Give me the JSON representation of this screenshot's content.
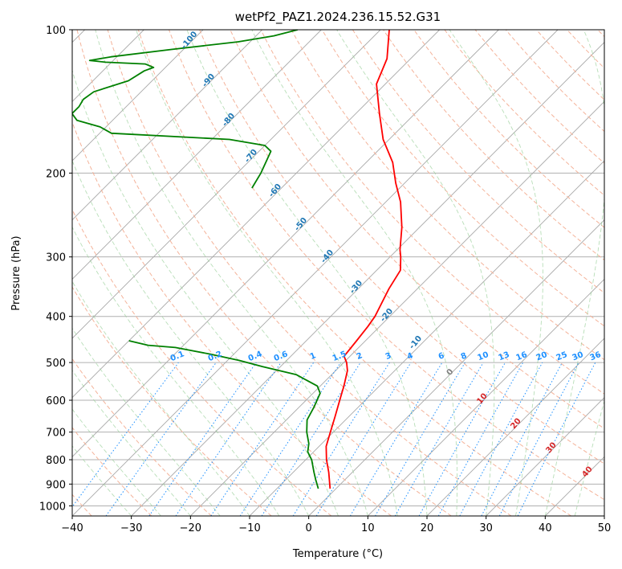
{
  "chart_data": {
    "type": "line",
    "title": "wetPf2_PAZ1.2024.236.15.52.G31",
    "xlabel": "Temperature (°C)",
    "ylabel": "Pressure (hPa)",
    "xlim": [
      -40,
      50
    ],
    "ylim": [
      1050,
      100
    ],
    "y_scale": "log",
    "grid": true,
    "x_ticks": [
      -40,
      -30,
      -20,
      -10,
      0,
      10,
      20,
      30,
      40,
      50
    ],
    "x_tick_labels": [
      "−40",
      "−30",
      "−20",
      "−10",
      "0",
      "10",
      "20",
      "30",
      "40",
      "50"
    ],
    "y_ticks": [
      100,
      200,
      300,
      400,
      500,
      600,
      700,
      800,
      900,
      1000
    ],
    "y_tick_labels": [
      "100",
      "200",
      "300",
      "400",
      "500",
      "600",
      "700",
      "800",
      "900",
      "1000"
    ],
    "series": [
      {
        "color": "#ff0000",
        "points": [
          {
            "p": 920,
            "t": -1
          },
          {
            "p": 850,
            "t": -4
          },
          {
            "p": 800,
            "t": -6.5
          },
          {
            "p": 750,
            "t": -8.8
          },
          {
            "p": 700,
            "t": -10.5
          },
          {
            "p": 650,
            "t": -12.3
          },
          {
            "p": 600,
            "t": -14.3
          },
          {
            "p": 560,
            "t": -16
          },
          {
            "p": 520,
            "t": -18
          },
          {
            "p": 500,
            "t": -19.5
          },
          {
            "p": 485,
            "t": -21
          },
          {
            "p": 450,
            "t": -21.5
          },
          {
            "p": 420,
            "t": -22
          },
          {
            "p": 400,
            "t": -22.5
          },
          {
            "p": 350,
            "t": -24.8
          },
          {
            "p": 320,
            "t": -26
          },
          {
            "p": 300,
            "t": -28.2
          },
          {
            "p": 290,
            "t": -29.5
          },
          {
            "p": 260,
            "t": -33
          },
          {
            "p": 230,
            "t": -37.5
          },
          {
            "p": 210,
            "t": -41.5
          },
          {
            "p": 190,
            "t": -45.5
          },
          {
            "p": 170,
            "t": -51
          },
          {
            "p": 150,
            "t": -56
          },
          {
            "p": 130,
            "t": -61.5
          },
          {
            "p": 115,
            "t": -64
          },
          {
            "p": 100,
            "t": -68.5
          }
        ]
      },
      {
        "color": "#008000",
        "points": [
          {
            "p": 920,
            "t": -3
          },
          {
            "p": 880,
            "t": -5
          },
          {
            "p": 850,
            "t": -6.5
          },
          {
            "p": 800,
            "t": -9
          },
          {
            "p": 770,
            "t": -11
          },
          {
            "p": 740,
            "t": -12.2
          },
          {
            "p": 700,
            "t": -14.5
          },
          {
            "p": 660,
            "t": -16.5
          },
          {
            "p": 620,
            "t": -17.5
          },
          {
            "p": 580,
            "t": -18.8
          },
          {
            "p": 560,
            "t": -20.5
          },
          {
            "p": 530,
            "t": -26
          },
          {
            "p": 510,
            "t": -33
          },
          {
            "p": 495,
            "t": -38
          },
          {
            "p": 480,
            "t": -44
          },
          {
            "p": 465,
            "t": -51
          },
          {
            "p": 460,
            "t": -56
          },
          {
            "p": 450,
            "t": -60
          }
        ]
      },
      {
        "color": "#008000",
        "points": [
          {
            "p": 215,
            "t": -65
          },
          {
            "p": 200,
            "t": -66
          },
          {
            "p": 180,
            "t": -68
          },
          {
            "p": 175,
            "t": -70
          },
          {
            "p": 170,
            "t": -77
          },
          {
            "p": 165,
            "t": -98
          },
          {
            "p": 160,
            "t": -101
          },
          {
            "p": 155,
            "t": -106
          },
          {
            "p": 150,
            "t": -108
          },
          {
            "p": 145,
            "t": -108
          },
          {
            "p": 140,
            "t": -108.5
          },
          {
            "p": 135,
            "t": -108
          },
          {
            "p": 128,
            "t": -104
          },
          {
            "p": 122,
            "t": -103
          },
          {
            "p": 120,
            "t": -102
          },
          {
            "p": 118,
            "t": -104
          },
          {
            "p": 117,
            "t": -111
          },
          {
            "p": 116,
            "t": -114
          },
          {
            "p": 114,
            "t": -111
          },
          {
            "p": 110,
            "t": -102
          },
          {
            "p": 106,
            "t": -92
          },
          {
            "p": 103,
            "t": -87
          },
          {
            "p": 100,
            "t": -84
          }
        ]
      }
    ],
    "dry_adiabat_labels": [
      "-100",
      "-90",
      "-80",
      "-70",
      "-60",
      "-50",
      "-40",
      "-30",
      "-20",
      "-10"
    ],
    "mixing_ratio_labels": [
      "0.1",
      "0.2",
      "0.4",
      "0.6",
      "1",
      "1.5",
      "2",
      "3",
      "4",
      "6",
      "8",
      "10",
      "13",
      "16",
      "20",
      "25",
      "30",
      "36"
    ],
    "moist_adiabat_labels": [
      "0",
      "10",
      "20",
      "30",
      "40"
    ],
    "colors": {
      "dry_adiabat_label": "#1f77b4",
      "mixing_ratio": "#1e90ff",
      "moist_adiabat_label": "#d62728",
      "zero_label": "#808080"
    }
  }
}
